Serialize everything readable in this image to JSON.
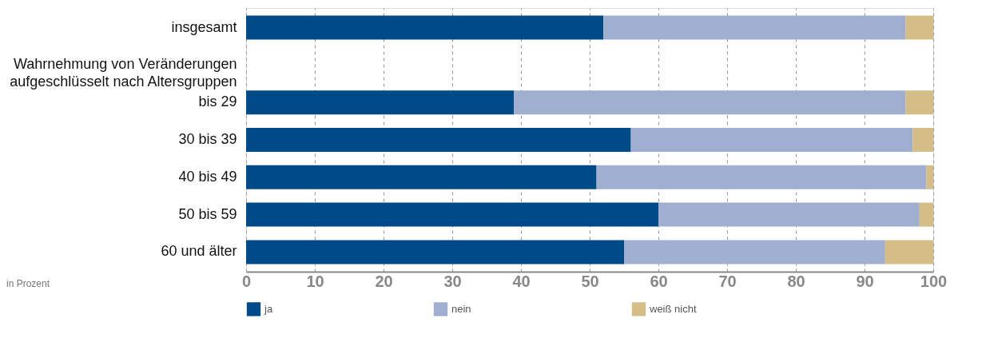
{
  "chart_data": {
    "type": "bar",
    "orientation": "horizontal",
    "stacked": true,
    "categories": [
      "insgesamt",
      "Wahrnehmung von Veränderungen aufgeschlüsselt nach Altersgruppen",
      "bis 29",
      "30 bis 39",
      "40 bis 49",
      "50 bis 59",
      "60 und älter"
    ],
    "series": [
      {
        "name": "ja",
        "color": "#004a87",
        "values": [
          52,
          null,
          39,
          56,
          51,
          60,
          55
        ]
      },
      {
        "name": "nein",
        "color": "#a0afd0",
        "values": [
          44,
          null,
          57,
          41,
          48,
          38,
          38
        ]
      },
      {
        "name": "weiß nicht",
        "color": "#d5bd88",
        "values": [
          4,
          null,
          4,
          3,
          1,
          2,
          7
        ]
      }
    ],
    "xlim": [
      0,
      100
    ],
    "xticks": [
      0,
      10,
      20,
      30,
      40,
      50,
      60,
      70,
      80,
      90,
      100
    ],
    "grid": "x",
    "legend": "bottom",
    "annotations": [
      "in Prozent"
    ]
  }
}
